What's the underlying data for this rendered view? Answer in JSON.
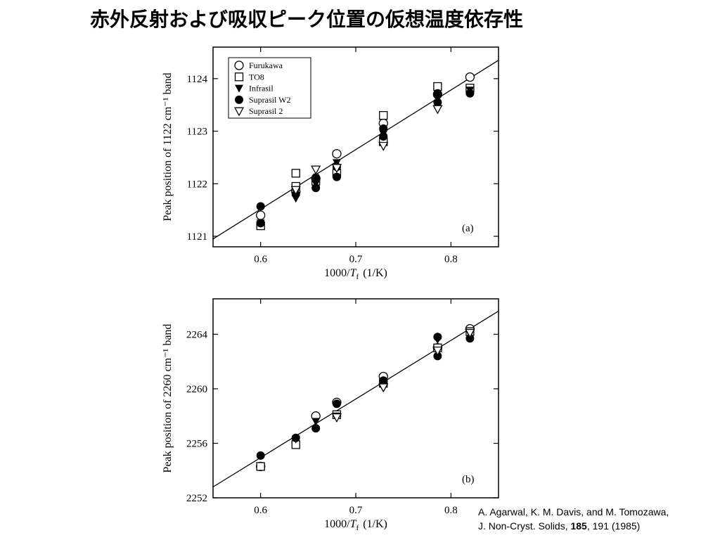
{
  "title": "赤外反射および吸収ピーク位置の仮想温度依存性",
  "citation": {
    "line1": "A. Agarwal, K. M. Davis, and M. Tomozawa,",
    "line2_prefix": "J. Non-Cryst. Solids, ",
    "line2_bold": "185",
    "line2_suffix": ", 191 (1985)"
  },
  "legend": [
    {
      "name": "Furukawa",
      "marker": "circle-open"
    },
    {
      "name": "TO8",
      "marker": "square-open"
    },
    {
      "name": "Infrasil",
      "marker": "triangle-down-filled"
    },
    {
      "name": "Suprasil W2",
      "marker": "circle-filled"
    },
    {
      "name": "Suprasil 2",
      "marker": "triangle-down-open"
    }
  ],
  "chart_data": [
    {
      "type": "scatter",
      "panel_label": "(a)",
      "xlabel_prefix": "1000/",
      "xlabel_var": "T",
      "xlabel_sub": "f",
      "xlabel_unit": "(1/K)",
      "ylabel": "Peak position of 1122 cm⁻¹ band",
      "xlim": [
        0.55,
        0.85
      ],
      "ylim": [
        1120.8,
        1124.6
      ],
      "xticks": [
        0.6,
        0.7,
        0.8
      ],
      "xtick_labels": [
        "0.6",
        "0.7",
        "0.8"
      ],
      "yticks": [
        1121,
        1122,
        1123,
        1124
      ],
      "ytick_labels": [
        "1121",
        "1122",
        "1123",
        "1124"
      ],
      "legend_position": "top-left",
      "fit_line": {
        "x": [
          0.55,
          0.85
        ],
        "y": [
          1120.95,
          1124.35
        ]
      },
      "series": [
        {
          "name": "Furukawa",
          "marker": "circle-open",
          "x": [
            0.6,
            0.637,
            0.658,
            0.68,
            0.729,
            0.786,
            0.82
          ],
          "y": [
            1121.4,
            1121.85,
            1122.1,
            1122.57,
            1123.15,
            1123.7,
            1124.03
          ]
        },
        {
          "name": "TO8",
          "marker": "square-open",
          "x": [
            0.6,
            0.637,
            0.637,
            0.658,
            0.68,
            0.729,
            0.729,
            0.786,
            0.82
          ],
          "y": [
            1121.2,
            1122.2,
            1121.95,
            1122.05,
            1122.2,
            1123.3,
            1122.8,
            1123.85,
            1123.82
          ]
        },
        {
          "name": "Infrasil",
          "marker": "triangle-down-filled",
          "x": [
            0.6,
            0.637,
            0.658,
            0.68,
            0.729,
            0.786,
            0.82
          ],
          "y": [
            1121.25,
            1121.72,
            1122.0,
            1122.4,
            1122.95,
            1123.62,
            1123.78
          ]
        },
        {
          "name": "Suprasil W2",
          "marker": "circle-filled",
          "x": [
            0.6,
            0.6,
            0.637,
            0.658,
            0.658,
            0.68,
            0.68,
            0.729,
            0.729,
            0.786,
            0.786,
            0.82
          ],
          "y": [
            1121.57,
            1121.25,
            1121.8,
            1122.12,
            1121.92,
            1122.32,
            1122.13,
            1123.05,
            1122.9,
            1123.72,
            1123.55,
            1123.72
          ]
        },
        {
          "name": "Suprasil 2",
          "marker": "triangle-down-open",
          "x": [
            0.637,
            0.658,
            0.68,
            0.729,
            0.786
          ],
          "y": [
            1121.88,
            1122.27,
            1122.3,
            1122.72,
            1123.42
          ]
        }
      ]
    },
    {
      "type": "scatter",
      "panel_label": "(b)",
      "xlabel_prefix": "1000/",
      "xlabel_var": "T",
      "xlabel_sub": "f",
      "xlabel_unit": "(1/K)",
      "ylabel": "Peak position of 2260 cm⁻¹ band",
      "xlim": [
        0.55,
        0.85
      ],
      "ylim": [
        2252,
        2266.6
      ],
      "xticks": [
        0.6,
        0.7,
        0.8
      ],
      "xtick_labels": [
        "0.6",
        "0.7",
        "0.8"
      ],
      "yticks": [
        2252,
        2256,
        2260,
        2264
      ],
      "ytick_labels": [
        "2252",
        "2256",
        "2260",
        "2264"
      ],
      "fit_line": {
        "x": [
          0.55,
          0.85
        ],
        "y": [
          2252.8,
          2265.7
        ]
      },
      "series": [
        {
          "name": "Furukawa",
          "marker": "circle-open",
          "x": [
            0.6,
            0.658,
            0.68,
            0.729,
            0.786,
            0.82
          ],
          "y": [
            2254.3,
            2258.0,
            2259.0,
            2260.9,
            2263.0,
            2264.4
          ]
        },
        {
          "name": "TO8",
          "marker": "square-open",
          "x": [
            0.6,
            0.637,
            0.68,
            0.729,
            0.786,
            0.82
          ],
          "y": [
            2254.3,
            2255.9,
            2258.1,
            2260.4,
            2263.0,
            2264.2
          ]
        },
        {
          "name": "Infrasil",
          "marker": "triangle-down-filled",
          "x": [
            0.637,
            0.658,
            0.68,
            0.729,
            0.786,
            0.82
          ],
          "y": [
            2256.3,
            2257.6,
            2258.0,
            2260.2,
            2263.6,
            2264.0
          ]
        },
        {
          "name": "Suprasil W2",
          "marker": "circle-filled",
          "x": [
            0.6,
            0.637,
            0.658,
            0.68,
            0.729,
            0.786,
            0.786,
            0.82
          ],
          "y": [
            2255.1,
            2256.4,
            2257.1,
            2258.9,
            2260.6,
            2263.8,
            2262.4,
            2263.7
          ]
        },
        {
          "name": "Suprasil 2",
          "marker": "triangle-down-open",
          "x": [
            0.68,
            0.729,
            0.786,
            0.82
          ],
          "y": [
            2257.9,
            2260.1,
            2262.8,
            2264.1
          ]
        }
      ]
    }
  ]
}
